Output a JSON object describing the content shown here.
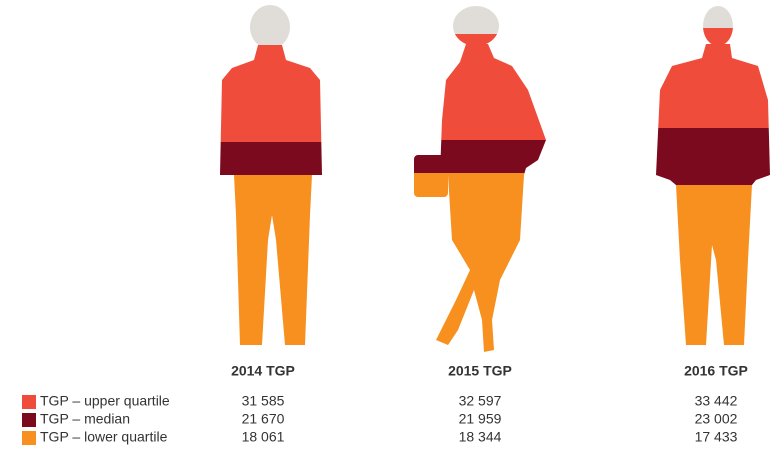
{
  "columns": [
    {
      "label": "2014 TGP",
      "values": [
        "31 585",
        "21 670",
        "18 061"
      ]
    },
    {
      "label": "2015 TGP",
      "values": [
        "32 597",
        "21 959",
        "18 344"
      ]
    },
    {
      "label": "2016 TGP",
      "values": [
        "33 442",
        "23 002",
        "17 433"
      ]
    }
  ],
  "legend": [
    {
      "label": "TGP – upper quartile",
      "color": "#ef4c3c"
    },
    {
      "label": "TGP – median",
      "color": "#7b0a1e"
    },
    {
      "label": "TGP – lower quartile",
      "color": "#f7901e"
    }
  ]
}
